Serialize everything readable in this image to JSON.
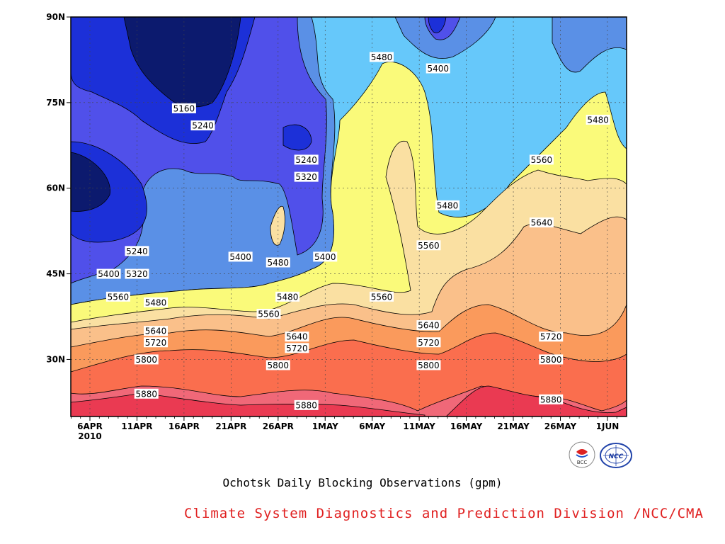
{
  "chart_data": {
    "type": "contour",
    "title": "Ochotsk Daily Blocking Observations (gpm)",
    "xlabel": "",
    "ylabel": "",
    "x_ticks": [
      "6APR",
      "11APR",
      "16APR",
      "21APR",
      "26APR",
      "1MAY",
      "6MAY",
      "11MAY",
      "16MAY",
      "21MAY",
      "26MAY",
      "1JUN"
    ],
    "x_year_label": "2010",
    "y_ticks": [
      "30N",
      "45N",
      "60N",
      "75N",
      "90N"
    ],
    "y_range_deg": [
      20,
      90
    ],
    "contour_levels": [
      5080,
      5160,
      5240,
      5320,
      5400,
      5480,
      5560,
      5640,
      5720,
      5800,
      5880
    ],
    "level_colors": [
      "#0c1a6e",
      "#1c30d8",
      "#5050ea",
      "#5a90e6",
      "#66c8fa",
      "#fafa7a",
      "#fae0a2",
      "#fac08a",
      "#fa9a5c",
      "#fa6e4e",
      "#f06878",
      "#ea3a52"
    ],
    "contour_labels": [
      {
        "text": "5160",
        "lon_date": "16APR",
        "lat": 74
      },
      {
        "text": "5240",
        "lon_date": "18APR",
        "lat": 71
      },
      {
        "text": "5240",
        "lon_date": "29APR",
        "lat": 65
      },
      {
        "text": "5320",
        "lon_date": "29APR",
        "lat": 62
      },
      {
        "text": "5480",
        "lon_date": "7MAY",
        "lat": 83
      },
      {
        "text": "5400",
        "lon_date": "13MAY",
        "lat": 81
      },
      {
        "text": "5480",
        "lon_date": "30MAY",
        "lat": 72
      },
      {
        "text": "5560",
        "lon_date": "24MAY",
        "lat": 65
      },
      {
        "text": "5480",
        "lon_date": "14MAY",
        "lat": 57
      },
      {
        "text": "5640",
        "lon_date": "24MAY",
        "lat": 54
      },
      {
        "text": "5560",
        "lon_date": "12MAY",
        "lat": 50
      },
      {
        "text": "5240",
        "lon_date": "11APR",
        "lat": 49
      },
      {
        "text": "5400",
        "lon_date": "22APR",
        "lat": 48
      },
      {
        "text": "5480",
        "lon_date": "26APR",
        "lat": 47
      },
      {
        "text": "5400",
        "lon_date": "1MAY",
        "lat": 48
      },
      {
        "text": "5400",
        "lon_date": "8APR",
        "lat": 45
      },
      {
        "text": "5320",
        "lon_date": "11APR",
        "lat": 45
      },
      {
        "text": "5560",
        "lon_date": "9APR",
        "lat": 41
      },
      {
        "text": "5480",
        "lon_date": "13APR",
        "lat": 40
      },
      {
        "text": "5480",
        "lon_date": "27APR",
        "lat": 41
      },
      {
        "text": "5560",
        "lon_date": "7MAY",
        "lat": 41
      },
      {
        "text": "5560",
        "lon_date": "25APR",
        "lat": 38
      },
      {
        "text": "5640",
        "lon_date": "13APR",
        "lat": 35
      },
      {
        "text": "5720",
        "lon_date": "13APR",
        "lat": 33
      },
      {
        "text": "5640",
        "lon_date": "28APR",
        "lat": 34
      },
      {
        "text": "5720",
        "lon_date": "28APR",
        "lat": 32
      },
      {
        "text": "5640",
        "lon_date": "12MAY",
        "lat": 36
      },
      {
        "text": "5720",
        "lon_date": "12MAY",
        "lat": 33
      },
      {
        "text": "5720",
        "lon_date": "25MAY",
        "lat": 34
      },
      {
        "text": "5800",
        "lon_date": "12APR",
        "lat": 30
      },
      {
        "text": "5800",
        "lon_date": "26APR",
        "lat": 29
      },
      {
        "text": "5800",
        "lon_date": "12MAY",
        "lat": 29
      },
      {
        "text": "5800",
        "lon_date": "25MAY",
        "lat": 30
      },
      {
        "text": "5880",
        "lon_date": "12APR",
        "lat": 24
      },
      {
        "text": "5880",
        "lon_date": "29APR",
        "lat": 22
      },
      {
        "text": "5880",
        "lon_date": "25MAY",
        "lat": 23
      }
    ],
    "grid": true
  },
  "footer": {
    "title": "Ochotsk Daily Blocking Observations (gpm)",
    "credit": "Climate System Diagnostics and Prediction Division /NCC/CMA",
    "logo_left_text": "BCC",
    "logo_right_text": "NCC"
  }
}
